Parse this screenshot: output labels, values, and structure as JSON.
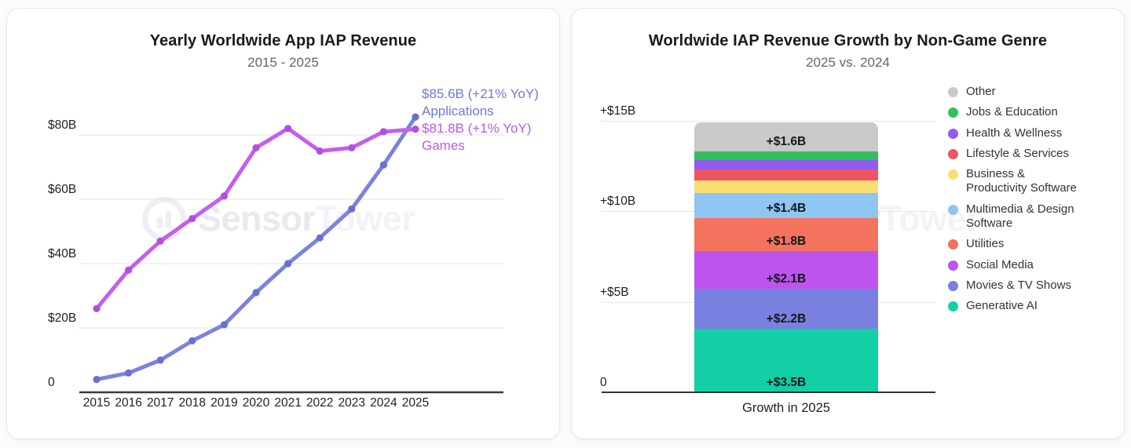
{
  "page": {
    "background": "#fbfbfb",
    "card_color": "#ffffff"
  },
  "watermark": {
    "primary": "Sensor",
    "secondary": "Tower"
  },
  "chart_data": [
    {
      "type": "line",
      "title": "Yearly Worldwide App IAP Revenue",
      "subtitle": "2015 - 2025",
      "x": [
        2015,
        2016,
        2017,
        2018,
        2019,
        2020,
        2021,
        2022,
        2023,
        2024,
        2025
      ],
      "ylim": [
        0,
        95
      ],
      "grid": true,
      "legend_position": "none",
      "y_ticks": [
        {
          "label": "$80B",
          "value": 80
        },
        {
          "label": "$60B",
          "value": 60
        },
        {
          "label": "$40B",
          "value": 40
        },
        {
          "label": "$20B",
          "value": 20
        },
        {
          "label": "0",
          "value": 0
        }
      ],
      "series": [
        {
          "name": "Applications",
          "end_label": "$85.6B (+21% YoY)",
          "color": "#7b84dc",
          "dot_color": "#6a6fd1",
          "text_color": "#6d79d8",
          "values": [
            4,
            6,
            10,
            16,
            21,
            31,
            40,
            48,
            57,
            70.7,
            85.6
          ]
        },
        {
          "name": "Games",
          "end_label": "$81.8B (+1% YoY)",
          "color": "#c45fec",
          "dot_color": "#b14fe0",
          "text_color": "#bc59e8",
          "values": [
            26,
            38,
            47,
            54,
            61,
            76,
            82,
            75,
            76,
            81,
            81.8
          ]
        }
      ]
    },
    {
      "type": "bar",
      "stacked": true,
      "title": "Worldwide IAP Revenue Growth by Non-Game Genre",
      "subtitle": "2025 vs. 2024",
      "xlabel": "Growth in 2025",
      "categories": [
        "Growth in 2025"
      ],
      "ylim": [
        0,
        16
      ],
      "grid": true,
      "legend_position": "right",
      "y_ticks": [
        {
          "label": "+$15B",
          "value": 15
        },
        {
          "label": "+$10B",
          "value": 10
        },
        {
          "label": "+$5B",
          "value": 5
        },
        {
          "label": "0",
          "value": 0
        }
      ],
      "segments_bottom_to_top": [
        {
          "name": "Generative AI",
          "value": 3.5,
          "label": "+$3.5B",
          "color": "#12cfa6"
        },
        {
          "name": "Movies & TV Shows",
          "value": 2.2,
          "label": "+$2.2B",
          "color": "#7a80df"
        },
        {
          "name": "Social Media",
          "value": 2.1,
          "label": "+$2.1B",
          "color": "#bd54ee"
        },
        {
          "name": "Utilities",
          "value": 1.8,
          "label": "+$1.8B",
          "color": "#f4735f"
        },
        {
          "name": "Multimedia & Design Software",
          "value": 1.4,
          "label": "+$1.4B",
          "color": "#8fc5f1"
        },
        {
          "name": "Business & Productivity Software",
          "value": 0.7,
          "label": "",
          "color": "#f9df72"
        },
        {
          "name": "Lifestyle & Services",
          "value": 0.6,
          "label": "",
          "color": "#ef5560"
        },
        {
          "name": "Health & Wellness",
          "value": 0.5,
          "label": "",
          "color": "#8e5cf0"
        },
        {
          "name": "Jobs & Education",
          "value": 0.5,
          "label": "",
          "color": "#33bf5c"
        },
        {
          "name": "Other",
          "value": 1.6,
          "label": "+$1.6B",
          "color": "#c9c9c9"
        }
      ],
      "legend": [
        {
          "label": "Other",
          "color": "#c9c9c9"
        },
        {
          "label": "Jobs & Education",
          "color": "#33bf5c"
        },
        {
          "label": "Health & Wellness",
          "color": "#8e5cf0"
        },
        {
          "label": "Lifestyle & Services",
          "color": "#ef5560"
        },
        {
          "label": "Business & Productivity Software",
          "color": "#f9df72"
        },
        {
          "label": "Multimedia & Design Software",
          "color": "#8fc5f1"
        },
        {
          "label": "Utilities",
          "color": "#f0705c"
        },
        {
          "label": "Social Media",
          "color": "#bd54ee"
        },
        {
          "label": "Movies & TV Shows",
          "color": "#7a80df"
        },
        {
          "label": "Generative AI",
          "color": "#12cfa6"
        }
      ]
    }
  ]
}
